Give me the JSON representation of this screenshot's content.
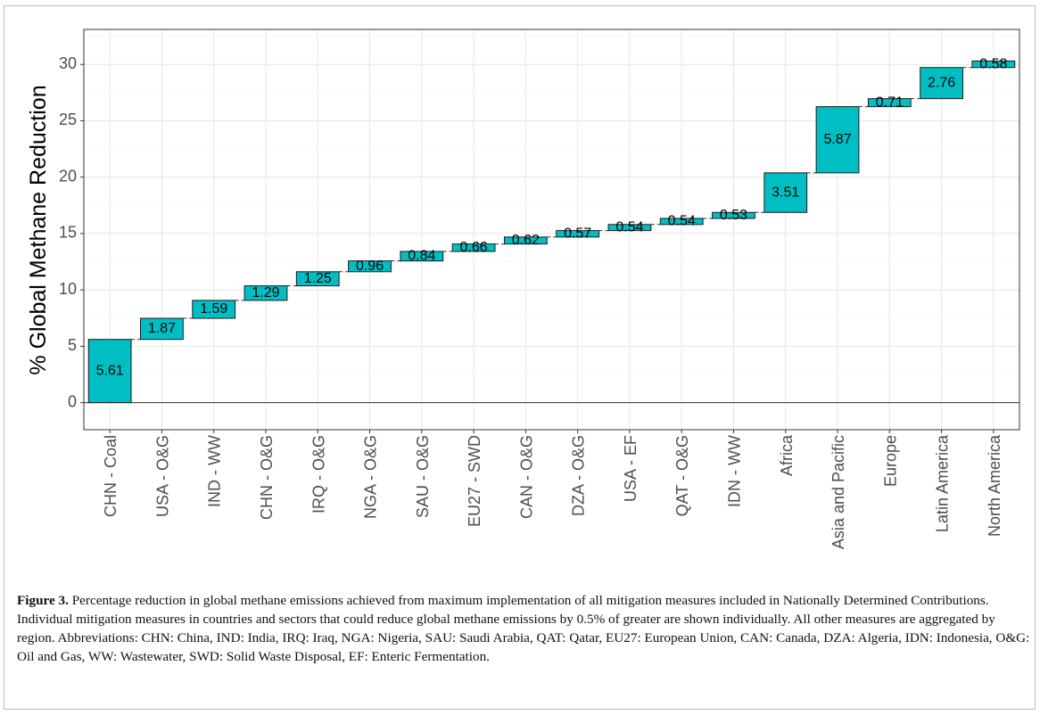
{
  "figure": {
    "caption_label": "Figure 3.",
    "caption_text": " Percentage reduction in global methane emissions achieved from maximum implementation of all mitigation measures included in Nationally Determined Contributions. Individual mitigation measures in countries and sectors that could reduce global methane emissions by 0.5% of greater are shown individually. All other measures are aggregated by region. Abbreviations: CHN: China, IND: India, IRQ: Iraq, NGA: Nigeria, SAU: Saudi Arabia, QAT: Qatar, EU27: European Union, CAN: Canada, DZA: Algeria, IDN: Indonesia, O&G: Oil and Gas, WW: Wastewater, SWD: Solid Waste Disposal, EF: Enteric Fermentation."
  },
  "chart_data": {
    "type": "bar",
    "subtype": "waterfall",
    "title": "",
    "xlabel": "",
    "ylabel": "% Global Methane Reduction",
    "categories": [
      "CHN - Coal",
      "USA - O&G",
      "IND - WW",
      "CHN - O&G",
      "IRQ - O&G",
      "NGA - O&G",
      "SAU - O&G",
      "EU27 - SWD",
      "CAN - O&G",
      "DZA - O&G",
      "USA - EF",
      "QAT - O&G",
      "IDN - WW",
      "Africa",
      "Asia and Pacific",
      "Europe",
      "Latin America",
      "North America"
    ],
    "values": [
      5.61,
      1.87,
      1.59,
      1.29,
      1.25,
      0.96,
      0.84,
      0.66,
      0.62,
      0.57,
      0.54,
      0.54,
      0.53,
      3.51,
      5.87,
      0.71,
      2.76,
      0.58
    ],
    "value_labels": [
      "5.61",
      "1.87",
      "1.59",
      "1.29",
      "1.25",
      "0.96",
      "0.84",
      "0.66",
      "0.62",
      "0.57",
      "0.54",
      "0.54",
      "0.53",
      "3.51",
      "5.87",
      "0.71",
      "2.76",
      "0.58"
    ],
    "y_ticks": [
      "0",
      "5",
      "10",
      "15",
      "20",
      "25",
      "30"
    ],
    "ylim": [
      -2.4,
      33.1
    ],
    "bar_color": "#00bfc4",
    "grid": true,
    "legend": "none"
  }
}
